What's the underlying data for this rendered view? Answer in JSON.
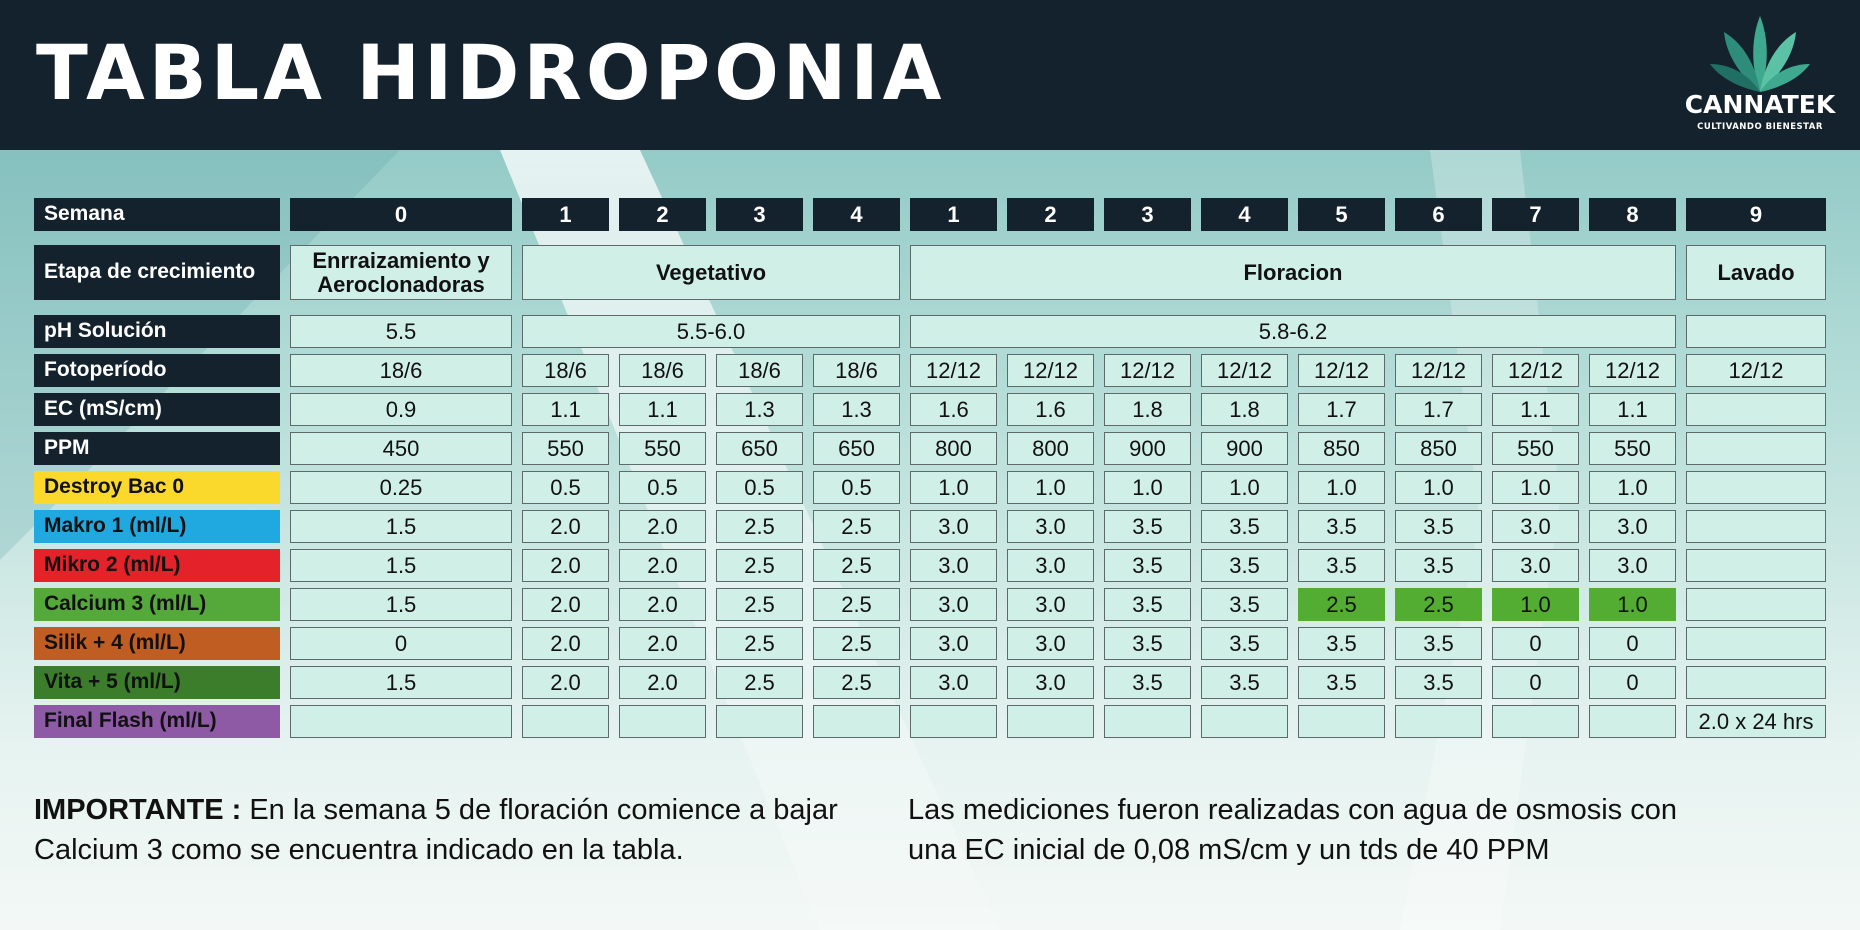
{
  "title": "TABLA HIDROPONIA",
  "logo": {
    "brand": "CANNATEK",
    "tagline": "CULTIVANDO BIENESTAR",
    "icon": "cannabis-leaf-icon"
  },
  "colors": {
    "header_bg": "#14222d",
    "cell_bg": "#d0efe7",
    "destroy_bac": "#fbd92c",
    "makro": "#1fa9e0",
    "mikro": "#e32229",
    "calcium": "#54a93a",
    "silik": "#c05d23",
    "vita": "#3b7d2a",
    "final_flash": "#8e5aa5",
    "calcium_highlight": "#52ad32"
  },
  "chart_data": {
    "type": "table",
    "title": "TABLA HIDROPONIA",
    "columns": [
      "0",
      "1",
      "2",
      "3",
      "4",
      "1",
      "2",
      "3",
      "4",
      "5",
      "6",
      "7",
      "8",
      "9"
    ],
    "rows": [
      {
        "label": "Semana",
        "cells": [
          {
            "text": "0"
          },
          {
            "text": "1"
          },
          {
            "text": "2"
          },
          {
            "text": "3"
          },
          {
            "text": "4"
          },
          {
            "text": "1"
          },
          {
            "text": "2"
          },
          {
            "text": "3"
          },
          {
            "text": "4"
          },
          {
            "text": "5"
          },
          {
            "text": "6"
          },
          {
            "text": "7"
          },
          {
            "text": "8"
          },
          {
            "text": "9"
          }
        ]
      },
      {
        "label": "Etapa de crecimiento",
        "cells": [
          {
            "text": "Enrraizamiento y Aeroclonadoras",
            "span": 1
          },
          {
            "text": "Vegetativo",
            "span": 4
          },
          {
            "text": "Floracion",
            "span": 8
          },
          {
            "text": "Lavado",
            "span": 1
          }
        ]
      },
      {
        "label": "pH Solución",
        "cells": [
          {
            "text": "5.5",
            "span": 1
          },
          {
            "text": "5.5-6.0",
            "span": 4
          },
          {
            "text": "5.8-6.2",
            "span": 8
          },
          {
            "text": "",
            "span": 1
          }
        ]
      },
      {
        "label": "Fotoperíodo",
        "cells": [
          {
            "text": "18/6"
          },
          {
            "text": "18/6"
          },
          {
            "text": "18/6"
          },
          {
            "text": "18/6"
          },
          {
            "text": "18/6"
          },
          {
            "text": "12/12"
          },
          {
            "text": "12/12"
          },
          {
            "text": "12/12"
          },
          {
            "text": "12/12"
          },
          {
            "text": "12/12"
          },
          {
            "text": "12/12"
          },
          {
            "text": "12/12"
          },
          {
            "text": "12/12"
          },
          {
            "text": "12/12"
          }
        ]
      },
      {
        "label": "EC (mS/cm)",
        "cells": [
          {
            "text": "0.9"
          },
          {
            "text": "1.1"
          },
          {
            "text": "1.1"
          },
          {
            "text": "1.3"
          },
          {
            "text": "1.3"
          },
          {
            "text": "1.6"
          },
          {
            "text": "1.6"
          },
          {
            "text": "1.8"
          },
          {
            "text": "1.8"
          },
          {
            "text": "1.7"
          },
          {
            "text": "1.7"
          },
          {
            "text": "1.1"
          },
          {
            "text": "1.1"
          },
          {
            "text": ""
          }
        ]
      },
      {
        "label": "PPM",
        "cells": [
          {
            "text": "450"
          },
          {
            "text": "550"
          },
          {
            "text": "550"
          },
          {
            "text": "650"
          },
          {
            "text": "650"
          },
          {
            "text": "800"
          },
          {
            "text": "800"
          },
          {
            "text": "900"
          },
          {
            "text": "900"
          },
          {
            "text": "850"
          },
          {
            "text": "850"
          },
          {
            "text": "550"
          },
          {
            "text": "550"
          },
          {
            "text": ""
          }
        ]
      },
      {
        "label": "Destroy Bac 0",
        "color_key": "destroy_bac",
        "cells": [
          {
            "text": "0.25"
          },
          {
            "text": "0.5"
          },
          {
            "text": "0.5"
          },
          {
            "text": "0.5"
          },
          {
            "text": "0.5"
          },
          {
            "text": "1.0"
          },
          {
            "text": "1.0"
          },
          {
            "text": "1.0"
          },
          {
            "text": "1.0"
          },
          {
            "text": "1.0"
          },
          {
            "text": "1.0"
          },
          {
            "text": "1.0"
          },
          {
            "text": "1.0"
          },
          {
            "text": ""
          }
        ]
      },
      {
        "label": "Makro 1 (ml/L)",
        "color_key": "makro",
        "cells": [
          {
            "text": "1.5"
          },
          {
            "text": "2.0"
          },
          {
            "text": "2.0"
          },
          {
            "text": "2.5"
          },
          {
            "text": "2.5"
          },
          {
            "text": "3.0"
          },
          {
            "text": "3.0"
          },
          {
            "text": "3.5"
          },
          {
            "text": "3.5"
          },
          {
            "text": "3.5"
          },
          {
            "text": "3.5"
          },
          {
            "text": "3.0"
          },
          {
            "text": "3.0"
          },
          {
            "text": ""
          }
        ]
      },
      {
        "label": "Mikro 2 (ml/L)",
        "color_key": "mikro",
        "cells": [
          {
            "text": "1.5"
          },
          {
            "text": "2.0"
          },
          {
            "text": "2.0"
          },
          {
            "text": "2.5"
          },
          {
            "text": "2.5"
          },
          {
            "text": "3.0"
          },
          {
            "text": "3.0"
          },
          {
            "text": "3.5"
          },
          {
            "text": "3.5"
          },
          {
            "text": "3.5"
          },
          {
            "text": "3.5"
          },
          {
            "text": "3.0"
          },
          {
            "text": "3.0"
          },
          {
            "text": ""
          }
        ]
      },
      {
        "label": "Calcium 3 (ml/L)",
        "color_key": "calcium",
        "cells": [
          {
            "text": "1.5"
          },
          {
            "text": "2.0"
          },
          {
            "text": "2.0"
          },
          {
            "text": "2.5"
          },
          {
            "text": "2.5"
          },
          {
            "text": "3.0"
          },
          {
            "text": "3.0"
          },
          {
            "text": "3.5"
          },
          {
            "text": "3.5"
          },
          {
            "text": "2.5",
            "highlight": true
          },
          {
            "text": "2.5",
            "highlight": true
          },
          {
            "text": "1.0",
            "highlight": true
          },
          {
            "text": "1.0",
            "highlight": true
          },
          {
            "text": ""
          }
        ]
      },
      {
        "label": "Silik +  4 (ml/L)",
        "color_key": "silik",
        "cells": [
          {
            "text": "0"
          },
          {
            "text": "2.0"
          },
          {
            "text": "2.0"
          },
          {
            "text": "2.5"
          },
          {
            "text": "2.5"
          },
          {
            "text": "3.0"
          },
          {
            "text": "3.0"
          },
          {
            "text": "3.5"
          },
          {
            "text": "3.5"
          },
          {
            "text": "3.5"
          },
          {
            "text": "3.5"
          },
          {
            "text": "0"
          },
          {
            "text": "0"
          },
          {
            "text": ""
          }
        ]
      },
      {
        "label": "Vita + 5 (ml/L)",
        "color_key": "vita",
        "cells": [
          {
            "text": "1.5"
          },
          {
            "text": "2.0"
          },
          {
            "text": "2.0"
          },
          {
            "text": "2.5"
          },
          {
            "text": "2.5"
          },
          {
            "text": "3.0"
          },
          {
            "text": "3.0"
          },
          {
            "text": "3.5"
          },
          {
            "text": "3.5"
          },
          {
            "text": "3.5"
          },
          {
            "text": "3.5"
          },
          {
            "text": "0"
          },
          {
            "text": "0"
          },
          {
            "text": ""
          }
        ]
      },
      {
        "label": "Final Flash (ml/L)",
        "color_key": "final_flash",
        "cells": [
          {
            "text": ""
          },
          {
            "text": ""
          },
          {
            "text": ""
          },
          {
            "text": ""
          },
          {
            "text": ""
          },
          {
            "text": ""
          },
          {
            "text": ""
          },
          {
            "text": ""
          },
          {
            "text": ""
          },
          {
            "text": ""
          },
          {
            "text": ""
          },
          {
            "text": ""
          },
          {
            "text": ""
          },
          {
            "text": "2.0 x 24 hrs"
          }
        ]
      }
    ]
  },
  "notes": {
    "important_label": "IMPORTANTE :",
    "important_text": " En la semana 5 de floración comience a bajar Calcium 3 como se encuentra indicado en la tabla.",
    "measurements_text": "Las mediciones fueron realizadas con agua de osmosis con una EC inicial de 0,08 mS/cm y un tds de 40 PPM"
  }
}
